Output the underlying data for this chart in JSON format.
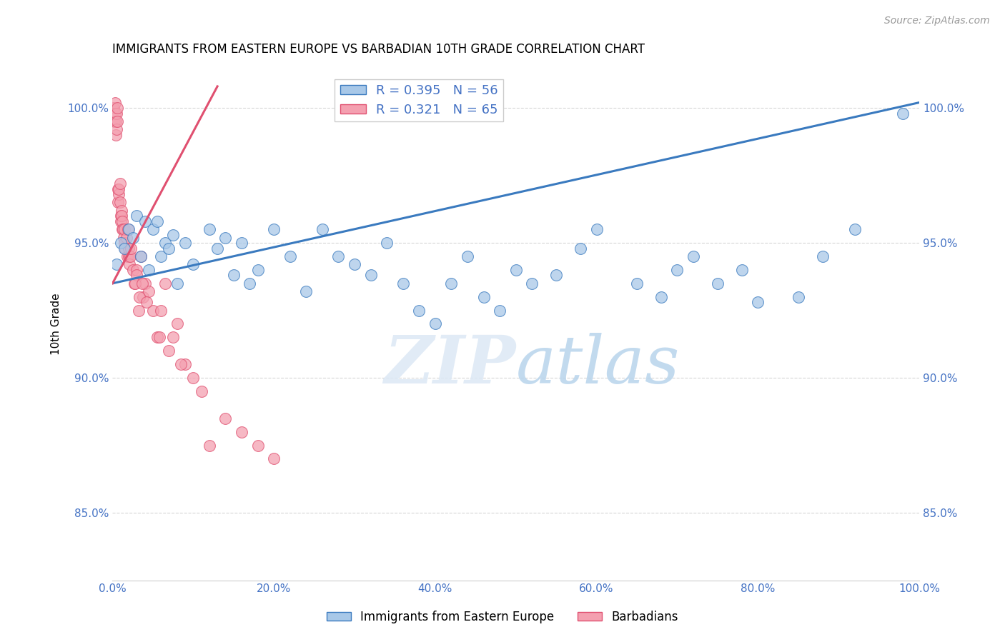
{
  "title": "IMMIGRANTS FROM EASTERN EUROPE VS BARBADIAN 10TH GRADE CORRELATION CHART",
  "source": "Source: ZipAtlas.com",
  "ylabel": "10th Grade",
  "xmin": 0.0,
  "xmax": 100.0,
  "ymin": 82.5,
  "ymax": 101.5,
  "yticks": [
    85.0,
    90.0,
    95.0,
    100.0
  ],
  "xticks": [
    0.0,
    20.0,
    40.0,
    60.0,
    80.0,
    100.0
  ],
  "blue_R": 0.395,
  "blue_N": 56,
  "pink_R": 0.321,
  "pink_N": 65,
  "blue_color": "#a8c8e8",
  "pink_color": "#f4a0b0",
  "blue_line_color": "#3a7abf",
  "pink_line_color": "#e05070",
  "legend_label_blue": "Immigrants from Eastern Europe",
  "legend_label_pink": "Barbadians",
  "watermark_zip": "ZIP",
  "watermark_atlas": "atlas",
  "background_color": "#ffffff",
  "grid_color": "#cccccc",
  "blue_scatter_x": [
    0.5,
    1.0,
    1.5,
    2.0,
    2.5,
    3.0,
    3.5,
    4.0,
    4.5,
    5.0,
    5.5,
    6.0,
    6.5,
    7.0,
    7.5,
    8.0,
    9.0,
    10.0,
    12.0,
    13.0,
    14.0,
    15.0,
    16.0,
    17.0,
    18.0,
    20.0,
    22.0,
    24.0,
    26.0,
    28.0,
    30.0,
    32.0,
    34.0,
    36.0,
    38.0,
    40.0,
    42.0,
    44.0,
    46.0,
    48.0,
    50.0,
    52.0,
    55.0,
    58.0,
    60.0,
    65.0,
    68.0,
    70.0,
    72.0,
    75.0,
    78.0,
    80.0,
    85.0,
    88.0,
    92.0,
    98.0
  ],
  "blue_scatter_y": [
    94.2,
    95.0,
    94.8,
    95.5,
    95.2,
    96.0,
    94.5,
    95.8,
    94.0,
    95.5,
    95.8,
    94.5,
    95.0,
    94.8,
    95.3,
    93.5,
    95.0,
    94.2,
    95.5,
    94.8,
    95.2,
    93.8,
    95.0,
    93.5,
    94.0,
    95.5,
    94.5,
    93.2,
    95.5,
    94.5,
    94.2,
    93.8,
    95.0,
    93.5,
    92.5,
    92.0,
    93.5,
    94.5,
    93.0,
    92.5,
    94.0,
    93.5,
    93.8,
    94.8,
    95.5,
    93.5,
    93.0,
    94.0,
    94.5,
    93.5,
    94.0,
    92.8,
    93.0,
    94.5,
    95.5,
    99.8
  ],
  "pink_scatter_x": [
    0.1,
    0.2,
    0.3,
    0.3,
    0.4,
    0.4,
    0.5,
    0.5,
    0.6,
    0.6,
    0.7,
    0.7,
    0.8,
    0.8,
    0.9,
    0.9,
    1.0,
    1.0,
    1.1,
    1.1,
    1.2,
    1.2,
    1.3,
    1.4,
    1.5,
    1.5,
    1.6,
    1.7,
    1.8,
    1.9,
    2.0,
    2.0,
    2.1,
    2.2,
    2.3,
    2.5,
    2.7,
    3.0,
    3.0,
    3.2,
    3.5,
    3.8,
    4.0,
    4.5,
    5.0,
    5.5,
    6.0,
    6.5,
    7.0,
    7.5,
    8.0,
    9.0,
    10.0,
    11.0,
    12.0,
    14.0,
    16.0,
    18.0,
    20.0,
    2.8,
    3.3,
    3.7,
    4.2,
    5.8,
    8.5
  ],
  "pink_scatter_y": [
    100.0,
    99.5,
    99.8,
    100.2,
    99.0,
    99.5,
    99.2,
    99.8,
    100.0,
    99.5,
    96.5,
    97.0,
    96.8,
    97.0,
    96.5,
    97.2,
    96.0,
    95.8,
    96.2,
    96.0,
    95.5,
    95.8,
    95.5,
    95.2,
    95.5,
    95.0,
    94.8,
    95.2,
    94.5,
    95.5,
    94.5,
    94.8,
    94.2,
    94.5,
    94.8,
    94.0,
    93.5,
    94.0,
    93.8,
    92.5,
    94.5,
    93.0,
    93.5,
    93.2,
    92.5,
    91.5,
    92.5,
    93.5,
    91.0,
    91.5,
    92.0,
    90.5,
    90.0,
    89.5,
    87.5,
    88.5,
    88.0,
    87.5,
    87.0,
    93.5,
    93.0,
    93.5,
    92.8,
    91.5,
    90.5
  ],
  "blue_trend_x0": 0.0,
  "blue_trend_x1": 100.0,
  "blue_trend_y0": 93.5,
  "blue_trend_y1": 100.2,
  "pink_trend_x0": 0.0,
  "pink_trend_x1": 13.0,
  "pink_trend_y0": 93.5,
  "pink_trend_y1": 100.8
}
